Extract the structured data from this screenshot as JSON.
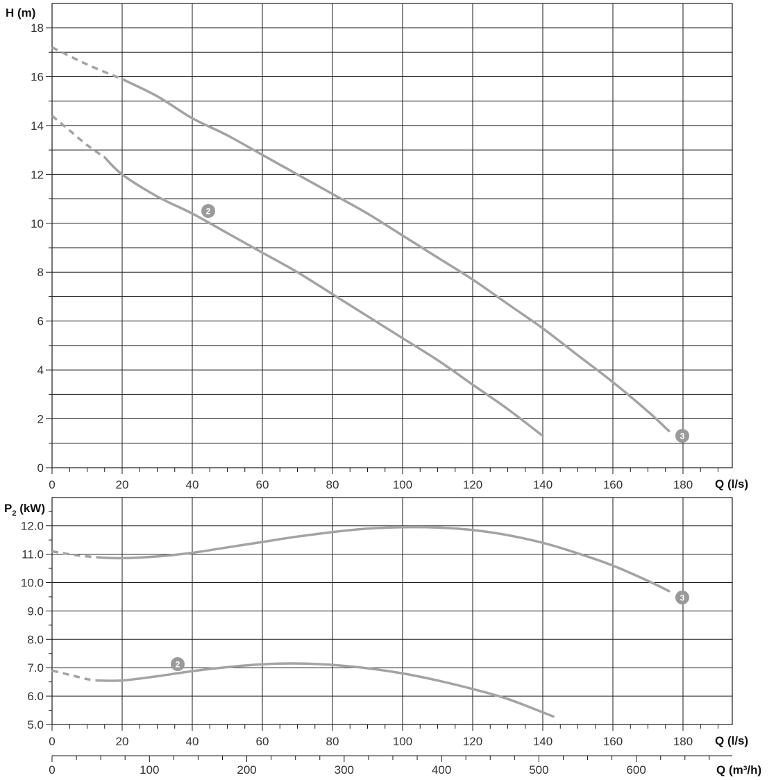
{
  "chart_data": [
    {
      "type": "line",
      "ylabel": "H (m)",
      "xlabel": "Q (l/s)",
      "xlim": [
        0,
        194
      ],
      "ylim": [
        0,
        18.9
      ],
      "x_ticks": [
        0,
        20,
        40,
        60,
        80,
        100,
        120,
        140,
        160,
        180
      ],
      "y_ticks": [
        0,
        2,
        4,
        6,
        8,
        10,
        12,
        14,
        16,
        18
      ],
      "grid": true,
      "series": [
        {
          "name": "2",
          "x_dashed": [
            0,
            5,
            10,
            15
          ],
          "y_dashed": [
            14.4,
            13.8,
            13.2,
            12.7
          ],
          "x": [
            15,
            20,
            30,
            40,
            50,
            60,
            70,
            80,
            90,
            100,
            110,
            120,
            130,
            140
          ],
          "y": [
            12.7,
            12.0,
            11.1,
            10.4,
            9.6,
            8.8,
            8.0,
            7.1,
            6.2,
            5.3,
            4.4,
            3.4,
            2.4,
            1.3
          ]
        },
        {
          "name": "3",
          "x_dashed": [
            0,
            10,
            20
          ],
          "y_dashed": [
            17.2,
            16.5,
            15.9
          ],
          "x": [
            20,
            30,
            40,
            50,
            60,
            70,
            80,
            90,
            100,
            110,
            120,
            130,
            140,
            150,
            160,
            170,
            176
          ],
          "y": [
            15.9,
            15.2,
            14.3,
            13.6,
            12.8,
            12.0,
            11.2,
            10.4,
            9.5,
            8.6,
            7.7,
            6.7,
            5.7,
            4.6,
            3.5,
            2.3,
            1.5
          ]
        }
      ]
    },
    {
      "type": "line",
      "ylabel": "P",
      "ylabel_sub": "2",
      "ylabel_unit": " (kW)",
      "xlabel": "Q (l/s)",
      "xlabel2": "Q (m³/h)",
      "xlim": [
        0,
        194
      ],
      "ylim": [
        5.0,
        12.7
      ],
      "x_ticks": [
        0,
        20,
        40,
        60,
        80,
        100,
        120,
        140,
        160,
        180
      ],
      "x2_ticks": [
        0,
        100,
        200,
        300,
        400,
        500,
        600
      ],
      "y_ticks": [
        "5.0",
        "6.0",
        "7.0",
        "8.0",
        "9.0",
        "10.0",
        "11.0",
        "12.0"
      ],
      "grid": true,
      "series": [
        {
          "name": "2",
          "x_dashed": [
            0,
            5,
            10,
            13
          ],
          "y_dashed": [
            6.9,
            6.75,
            6.6,
            6.55
          ],
          "x": [
            13,
            20,
            30,
            40,
            50,
            60,
            70,
            80,
            90,
            100,
            110,
            120,
            130,
            143
          ],
          "y": [
            6.55,
            6.55,
            6.7,
            6.88,
            7.02,
            7.12,
            7.15,
            7.1,
            6.98,
            6.8,
            6.55,
            6.25,
            5.9,
            5.28
          ]
        },
        {
          "name": "3",
          "x_dashed": [
            0,
            7,
            14
          ],
          "y_dashed": [
            11.1,
            10.96,
            10.88
          ],
          "x": [
            14,
            20,
            30,
            40,
            50,
            60,
            70,
            80,
            90,
            100,
            110,
            120,
            130,
            140,
            150,
            160,
            170,
            176
          ],
          "y": [
            10.88,
            10.86,
            10.92,
            11.05,
            11.24,
            11.43,
            11.62,
            11.78,
            11.9,
            11.95,
            11.94,
            11.85,
            11.67,
            11.4,
            11.03,
            10.6,
            10.06,
            9.7
          ]
        }
      ]
    }
  ]
}
